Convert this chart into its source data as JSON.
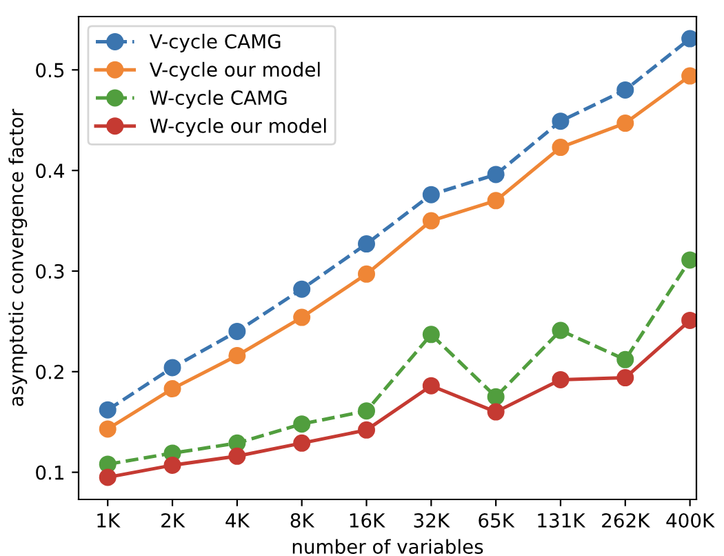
{
  "chart_data": {
    "type": "line",
    "xlabel": "number of variables",
    "ylabel": "asymptotic convergence factor",
    "categories": [
      "1K",
      "2K",
      "4K",
      "8K",
      "16K",
      "32K",
      "65K",
      "131K",
      "262K",
      "400K"
    ],
    "series": [
      {
        "name": "V-cycle CAMG",
        "color": "#3b75af",
        "line_style": "dashed",
        "values": [
          0.162,
          0.204,
          0.24,
          0.282,
          0.327,
          0.376,
          0.396,
          0.449,
          0.48,
          0.531
        ]
      },
      {
        "name": "V-cycle our model",
        "color": "#ef8636",
        "line_style": "solid",
        "values": [
          0.143,
          0.183,
          0.216,
          0.254,
          0.297,
          0.35,
          0.37,
          0.423,
          0.447,
          0.494
        ]
      },
      {
        "name": "W-cycle CAMG",
        "color": "#519e3e",
        "line_style": "dashed",
        "values": [
          0.108,
          0.119,
          0.129,
          0.148,
          0.161,
          0.237,
          0.175,
          0.241,
          0.212,
          0.311
        ]
      },
      {
        "name": "W-cycle our model",
        "color": "#c53a32",
        "line_style": "solid",
        "values": [
          0.095,
          0.107,
          0.116,
          0.129,
          0.142,
          0.186,
          0.16,
          0.192,
          0.194,
          0.251
        ]
      }
    ],
    "marker": "circle",
    "ylim": [
      0.073,
      0.553
    ],
    "yticks": [
      0.1,
      0.2,
      0.3,
      0.4,
      0.5
    ],
    "grid": false,
    "legend": "top left"
  }
}
